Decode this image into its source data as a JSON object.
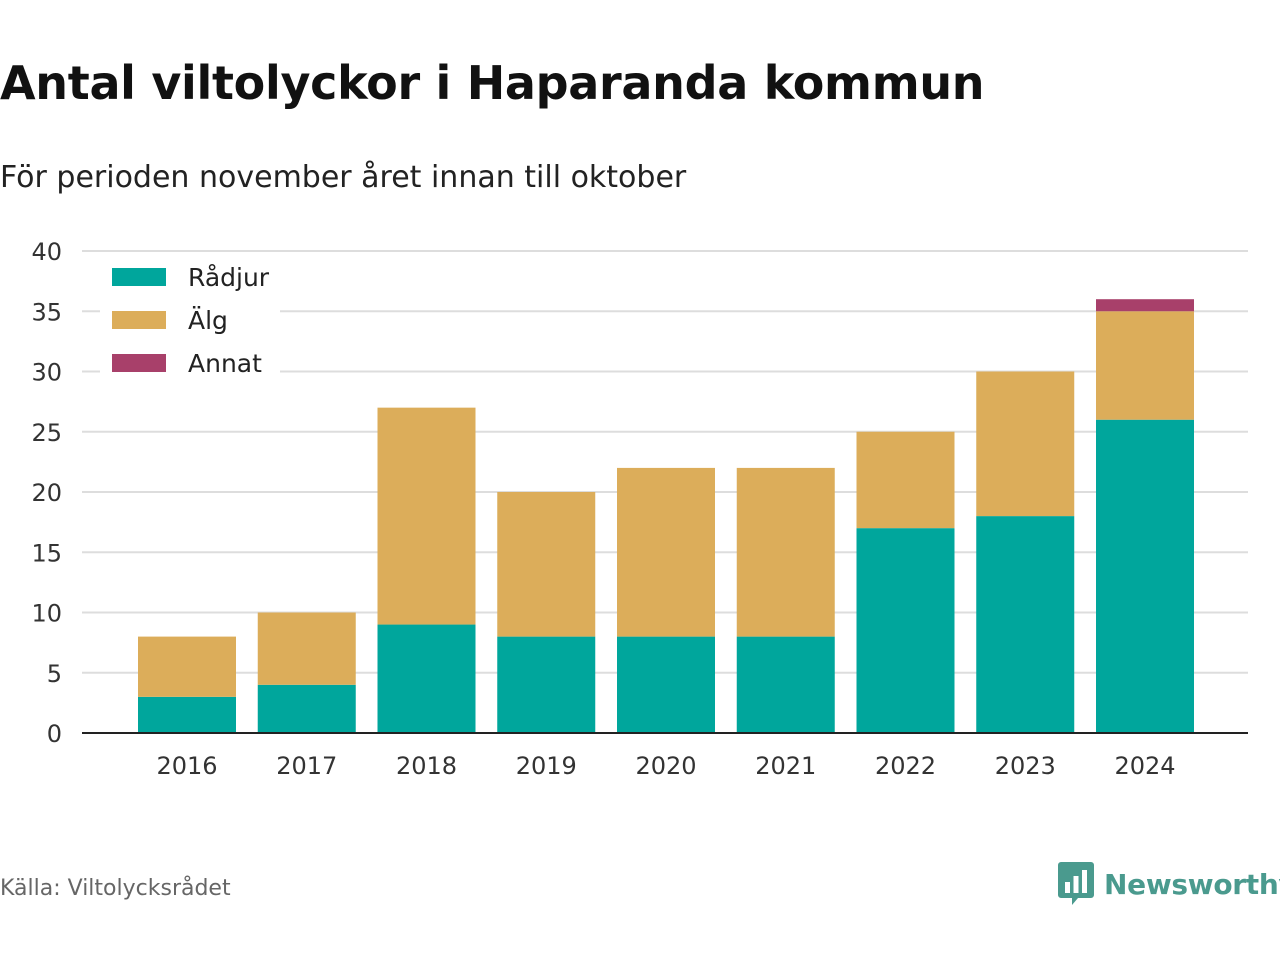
{
  "header": {
    "title": "Antal viltolyckor i Haparanda kommun",
    "subtitle": "För perioden november året innan till oktober"
  },
  "footer": {
    "source": "Källa: Viltolycksrådet",
    "brand": "Newsworthy",
    "brand_icon": "bar-chart-speech-bubble-icon",
    "brand_color": "#4a9a8e"
  },
  "chart_data": {
    "type": "bar",
    "stacked": true,
    "categories": [
      "2016",
      "2017",
      "2018",
      "2019",
      "2020",
      "2021",
      "2022",
      "2023",
      "2024"
    ],
    "series": [
      {
        "name": "Rådjur",
        "color": "#00a69c",
        "values": [
          3,
          4,
          9,
          8,
          8,
          8,
          17,
          18,
          26
        ]
      },
      {
        "name": "Älg",
        "color": "#dcad5a",
        "values": [
          5,
          6,
          18,
          12,
          14,
          14,
          8,
          12,
          9
        ]
      },
      {
        "name": "Annat",
        "color": "#a8406a",
        "values": [
          0,
          0,
          0,
          0,
          0,
          0,
          0,
          0,
          1
        ]
      }
    ],
    "ylim": [
      0,
      40
    ],
    "yticks": [
      0,
      5,
      10,
      15,
      20,
      25,
      30,
      35,
      40
    ],
    "grid": true,
    "legend_position": "top-left"
  }
}
